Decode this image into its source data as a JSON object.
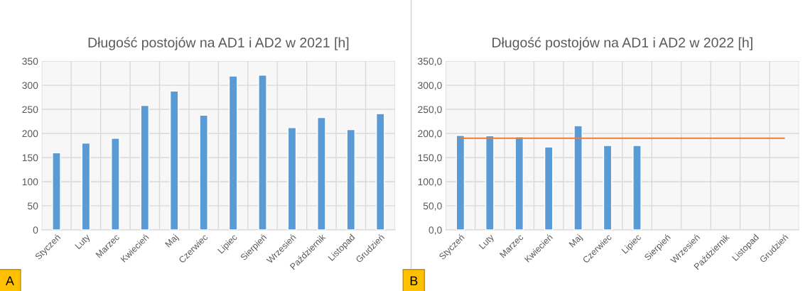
{
  "chart_data": [
    {
      "type": "bar",
      "title": "Długość postojów na AD1 i AD2 w 2021 [h]",
      "categories": [
        "Styczeń",
        "Luty",
        "Marzec",
        "Kwiecień",
        "Maj",
        "Czerwiec",
        "Lipiec",
        "Sierpień",
        "Wrzesień",
        "Październik",
        "Listopad",
        "Grudzień"
      ],
      "series": [
        {
          "color": "#5b9bd5",
          "values": [
            160,
            180,
            190,
            258,
            288,
            238,
            319,
            321,
            212,
            233,
            208,
            241
          ]
        }
      ],
      "ylim": [
        0,
        350
      ],
      "yticks": [
        0,
        50,
        100,
        150,
        200,
        250,
        300,
        350
      ],
      "grid": true,
      "legend": false,
      "annotations": [
        "A"
      ]
    },
    {
      "type": "bar",
      "title": "Długość postojów na AD1 i AD2 w 2022 [h]",
      "categories": [
        "Styczeń",
        "Luty",
        "Marzec",
        "Kwiecień",
        "Maj",
        "Czerwiec",
        "Lipiec",
        "Sierpień",
        "Wrzesień",
        "Październik",
        "Listopad",
        "Grudzień"
      ],
      "series": [
        {
          "color": "#5b9bd5",
          "values": [
            196,
            195,
            193,
            172,
            216,
            175,
            175,
            null,
            null,
            null,
            null,
            null
          ]
        },
        {
          "type": "line",
          "color": "#ed7d31",
          "values": [
            190,
            190,
            190,
            190,
            190,
            190,
            190,
            190,
            190,
            190,
            190,
            190
          ]
        }
      ],
      "ylim": [
        0,
        350
      ],
      "yticks": [
        {
          "value": 0,
          "label": "0,0"
        },
        {
          "value": 50,
          "label": "50,0"
        },
        {
          "value": 100,
          "label": "100,0"
        },
        {
          "value": 150,
          "label": "150,0"
        },
        {
          "value": 200,
          "label": "200,0"
        },
        {
          "value": 250,
          "label": "250,0"
        },
        {
          "value": 300,
          "label": "300,0"
        },
        {
          "value": 350,
          "label": "350,0"
        }
      ],
      "grid": true,
      "legend": false,
      "annotations": [
        "B"
      ]
    }
  ]
}
